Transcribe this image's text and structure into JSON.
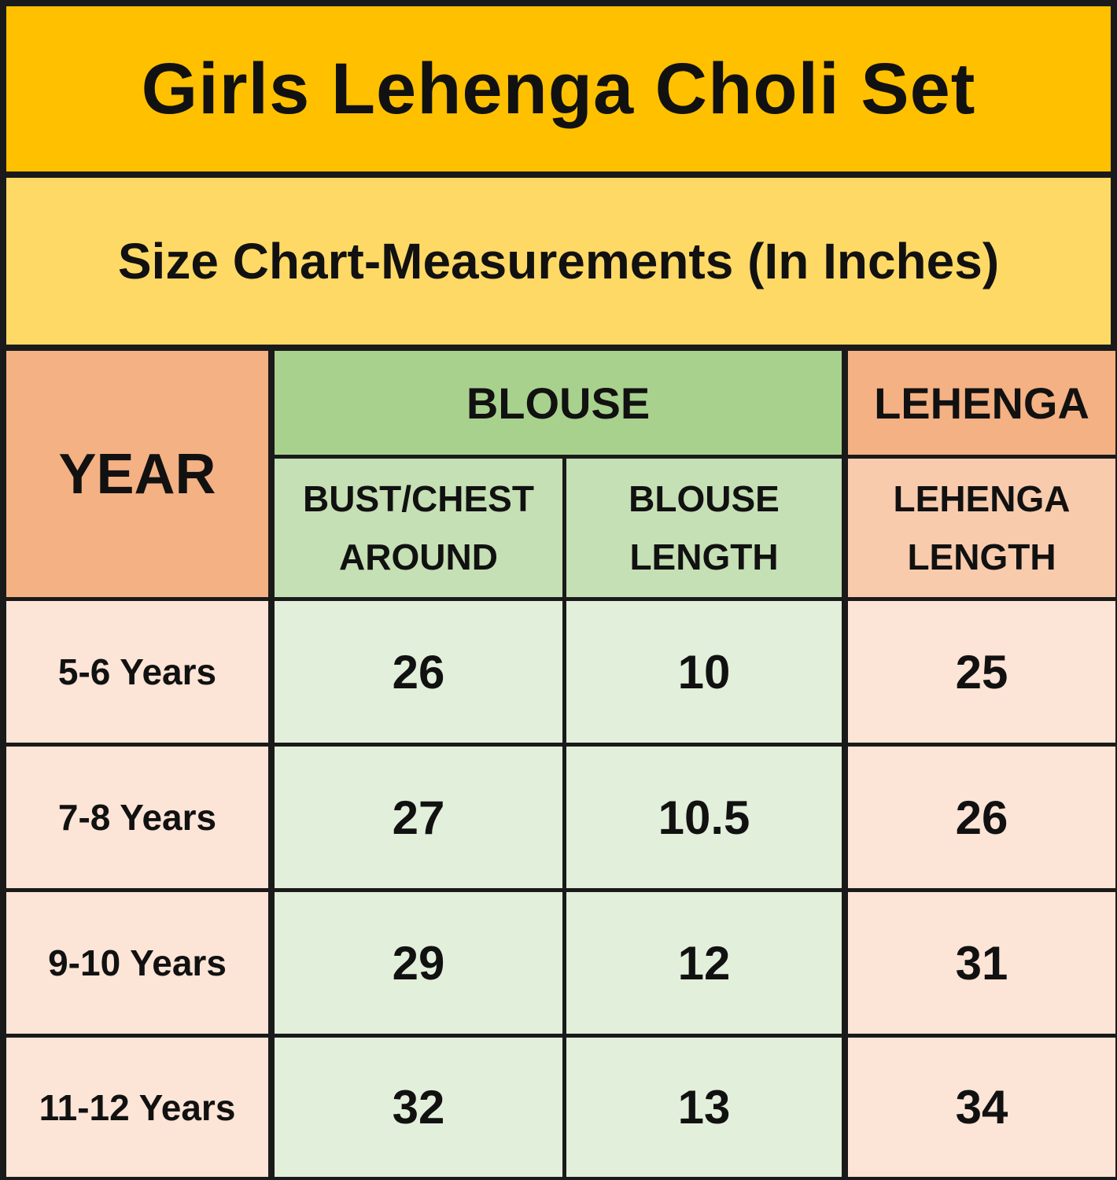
{
  "title": "Girls Lehenga Choli Set",
  "subtitle": "Size Chart-Measurements (In Inches)",
  "headers": {
    "year": "YEAR",
    "blouse_group": "BLOUSE",
    "lehenga_group": "LEHENGA",
    "bust_line1": "BUST/CHEST",
    "bust_line2": "AROUND",
    "blouse_len_line1": "BLOUSE",
    "blouse_len_line2": "LENGTH",
    "lehenga_len_line1": "LEHENGA",
    "lehenga_len_line2": "LENGTH"
  },
  "rows": [
    {
      "year": "5-6 Years",
      "bust": "26",
      "blouse_length": "10",
      "lehenga_length": "25"
    },
    {
      "year": "7-8 Years",
      "bust": "27",
      "blouse_length": "10.5",
      "lehenga_length": "26"
    },
    {
      "year": "9-10 Years",
      "bust": "29",
      "blouse_length": "12",
      "lehenga_length": "31"
    },
    {
      "year": "11-12 Years",
      "bust": "32",
      "blouse_length": "13",
      "lehenga_length": "34"
    }
  ],
  "colors": {
    "title_bg": "#FFC000",
    "subtitle_bg": "#FFD966",
    "year_header_bg": "#F4B183",
    "blouse_header_bg": "#A9D18E",
    "blouse_sub_bg": "#C5E0B4",
    "blouse_cell_bg": "#E2EFDA",
    "lehenga_sub_bg": "#F8CBAD",
    "peach_cell_bg": "#FCE4D6"
  }
}
